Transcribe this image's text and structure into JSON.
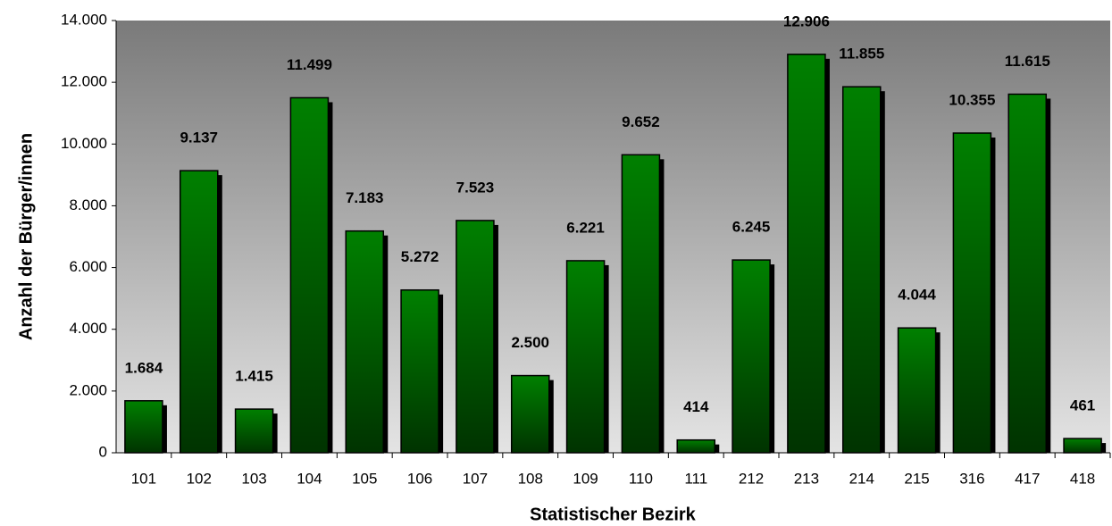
{
  "chart_data": {
    "type": "bar",
    "x_label": "Statistischer Bezirk",
    "y_label": "Anzahl der Bürger/innen",
    "categories": [
      "101",
      "102",
      "103",
      "104",
      "105",
      "106",
      "107",
      "108",
      "109",
      "110",
      "111",
      "212",
      "213",
      "214",
      "215",
      "316",
      "417",
      "418"
    ],
    "values": [
      1684,
      9137,
      1415,
      11499,
      7183,
      5272,
      7523,
      2500,
      6221,
      9652,
      414,
      6245,
      12906,
      11855,
      4044,
      10355,
      11615,
      461
    ],
    "value_labels": [
      "1.684",
      "9.137",
      "1.415",
      "11.499",
      "7.183",
      "5.272",
      "7.523",
      "2.500",
      "6.221",
      "9.652",
      "414",
      "6.245",
      "12.906",
      "11.855",
      "4.044",
      "10.355",
      "11.615",
      "461"
    ],
    "color": "#008000",
    "ylim": [
      0,
      14000
    ],
    "yticks": [
      0,
      {
        "value": 2000,
        "label": "2.000"
      },
      {
        "value": 4000,
        "label": "4.000"
      },
      {
        "value": 6000,
        "label": "6.000"
      },
      {
        "value": 8000,
        "label": "8.000"
      },
      {
        "value": 10000,
        "label": "10.000"
      },
      {
        "value": 12000,
        "label": "12.000"
      },
      {
        "value": 14000,
        "label": "14.000"
      }
    ],
    "grid": false
  }
}
